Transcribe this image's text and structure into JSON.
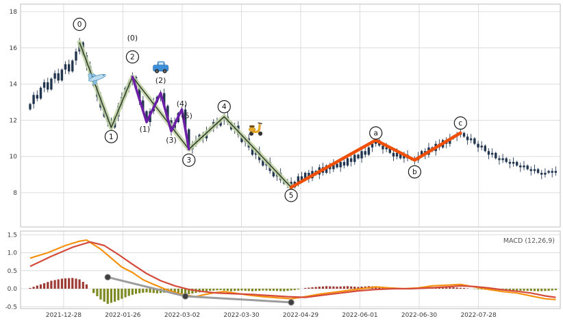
{
  "chart_data": {
    "type": "candlestick",
    "title": "",
    "x_axis": {
      "tick_labels": [
        "2021-12-28",
        "2022-01-26",
        "2022-03-02",
        "2022-03-30",
        "2022-04-29",
        "2022-06-01",
        "2022-06-30",
        "2022-07-28"
      ],
      "tick_day_indices": [
        9.5,
        26.3,
        43.1,
        59.9,
        76.7,
        93.5,
        110.3,
        127.1
      ]
    },
    "price_panel": {
      "yticks": [
        {
          "v": 18,
          "label": "18"
        },
        {
          "v": 16,
          "label": "16"
        },
        {
          "v": 14,
          "label": "14"
        },
        {
          "v": 12,
          "label": "12"
        },
        {
          "v": 10,
          "label": "10"
        },
        {
          "v": 8,
          "label": "8"
        }
      ],
      "ylim": [
        6.1,
        18.4
      ],
      "close": [
        12.9,
        13.4,
        13.2,
        13.8,
        14.1,
        13.7,
        14.3,
        14.6,
        14.2,
        14.8,
        15.1,
        14.7,
        15.3,
        15.8,
        16.3,
        15.6,
        15.0,
        14.4,
        13.9,
        13.3,
        12.7,
        12.2,
        11.9,
        11.6,
        12.2,
        12.8,
        13.3,
        13.8,
        14.1,
        14.4,
        13.8,
        13.1,
        12.5,
        11.9,
        12.5,
        13.0,
        13.3,
        13.5,
        12.8,
        12.0,
        11.4,
        11.9,
        12.4,
        12.6,
        11.5,
        10.4,
        10.7,
        10.9,
        11.2,
        11.0,
        11.4,
        11.6,
        11.9,
        11.7,
        12.0,
        12.2,
        11.9,
        11.5,
        11.7,
        11.2,
        10.8,
        11.0,
        10.5,
        10.1,
        10.3,
        9.8,
        9.5,
        9.7,
        9.2,
        8.9,
        9.1,
        8.7,
        8.5,
        8.6,
        8.3,
        8.6,
        8.9,
        8.7,
        9.1,
        8.8,
        9.2,
        9.0,
        9.4,
        9.1,
        9.5,
        9.3,
        9.6,
        9.4,
        9.7,
        9.5,
        9.9,
        9.7,
        10.1,
        9.9,
        10.3,
        10.1,
        10.5,
        10.7,
        10.9,
        10.6,
        10.4,
        10.5,
        10.2,
        10.0,
        10.2,
        9.9,
        10.1,
        9.9,
        9.85,
        9.8,
        10.0,
        10.3,
        10.1,
        10.5,
        10.3,
        10.7,
        10.5,
        10.9,
        10.7,
        11.0,
        11.1,
        11.2,
        11.3,
        11.1,
        10.9,
        11.0,
        10.7,
        10.5,
        10.6,
        10.3,
        10.1,
        10.2,
        9.9,
        9.8,
        9.9,
        9.7,
        9.6,
        9.7,
        9.5,
        9.4,
        9.5,
        9.3,
        9.2,
        9.3,
        9.1,
        9.0,
        9.1,
        9.2,
        9.1,
        9.2
      ],
      "elliott_waves": {
        "primary": {
          "points": [
            [
              14,
              16.3
            ],
            [
              23,
              11.6
            ],
            [
              29,
              14.4
            ],
            [
              45,
              10.4
            ],
            [
              55,
              12.2
            ],
            [
              74,
              8.3
            ]
          ],
          "labels": [
            {
              "text": "0",
              "i": 14,
              "price": 17.3
            },
            {
              "text": "1",
              "i": 23,
              "price": 11.1
            },
            {
              "text": "2",
              "i": 29,
              "price": 15.5
            },
            {
              "text": "3",
              "i": 45,
              "price": 9.8
            },
            {
              "text": "4",
              "i": 55,
              "price": 12.75
            },
            {
              "text": "5",
              "i": 74,
              "price": 7.85
            }
          ]
        },
        "sub": {
          "points": [
            [
              29,
              14.4
            ],
            [
              33,
              11.9
            ],
            [
              37,
              13.5
            ],
            [
              40,
              11.4
            ],
            [
              43,
              12.6
            ],
            [
              45,
              10.4
            ]
          ],
          "labels": [
            {
              "text": "(0)",
              "i": 29,
              "price": 16.55
            },
            {
              "text": "(1)",
              "i": 32.5,
              "price": 11.5
            },
            {
              "text": "(2)",
              "i": 37,
              "price": 14.2
            },
            {
              "text": "(3)",
              "i": 40,
              "price": 10.9
            },
            {
              "text": "(4)",
              "i": 43,
              "price": 12.9
            },
            {
              "text": "(5)",
              "i": 44.5,
              "price": 12.25
            }
          ]
        },
        "corrective": {
          "points": [
            [
              74,
              8.3
            ],
            [
              98,
              10.9
            ],
            [
              109,
              9.8
            ],
            [
              122,
              11.3
            ]
          ],
          "labels": [
            {
              "text": "a",
              "i": 98,
              "price": 11.3
            },
            {
              "text": "b",
              "i": 109,
              "price": 9.15
            },
            {
              "text": "c",
              "i": 122,
              "price": 11.85
            }
          ]
        }
      },
      "icons": [
        {
          "name": "airplane-icon",
          "i": 19,
          "price": 14.35
        },
        {
          "name": "car-icon",
          "i": 37,
          "price": 14.9
        },
        {
          "name": "scooter-icon",
          "i": 64,
          "price": 11.55
        }
      ]
    },
    "macd_panel": {
      "label": "MACD (12,26,9)",
      "yticks": [
        {
          "v": 1.5,
          "label": "1.5"
        },
        {
          "v": 1.0,
          "label": "1.0"
        },
        {
          "v": 0.5,
          "label": "0.5"
        },
        {
          "v": 0.0,
          "label": "0.0"
        },
        {
          "v": -0.5,
          "label": "-0.5"
        }
      ],
      "ylim": [
        -0.62,
        1.6
      ],
      "macd_anchors": [
        [
          0,
          0.85
        ],
        [
          5,
          1.0
        ],
        [
          10,
          1.2
        ],
        [
          14,
          1.32
        ],
        [
          16,
          1.35
        ],
        [
          20,
          1.1
        ],
        [
          23,
          0.85
        ],
        [
          26,
          0.6
        ],
        [
          29,
          0.45
        ],
        [
          32,
          0.25
        ],
        [
          35,
          0.12
        ],
        [
          38,
          0.0
        ],
        [
          41,
          -0.1
        ],
        [
          44,
          -0.18
        ],
        [
          47,
          -0.22
        ],
        [
          50,
          -0.15
        ],
        [
          53,
          -0.1
        ],
        [
          55,
          -0.08
        ],
        [
          58,
          -0.12
        ],
        [
          62,
          -0.18
        ],
        [
          66,
          -0.22
        ],
        [
          70,
          -0.25
        ],
        [
          74,
          -0.28
        ],
        [
          78,
          -0.22
        ],
        [
          82,
          -0.15
        ],
        [
          86,
          -0.1
        ],
        [
          90,
          -0.05
        ],
        [
          94,
          0.0
        ],
        [
          98,
          0.05
        ],
        [
          102,
          0.02
        ],
        [
          106,
          0.0
        ],
        [
          110,
          0.02
        ],
        [
          114,
          0.08
        ],
        [
          118,
          0.1
        ],
        [
          122,
          0.12
        ],
        [
          126,
          0.05
        ],
        [
          130,
          -0.02
        ],
        [
          134,
          -0.08
        ],
        [
          138,
          -0.12
        ],
        [
          142,
          -0.2
        ],
        [
          146,
          -0.28
        ],
        [
          149,
          -0.3
        ]
      ],
      "signal_anchors": [
        [
          0,
          0.62
        ],
        [
          6,
          0.9
        ],
        [
          12,
          1.15
        ],
        [
          17,
          1.3
        ],
        [
          21,
          1.2
        ],
        [
          25,
          0.95
        ],
        [
          29,
          0.68
        ],
        [
          33,
          0.42
        ],
        [
          37,
          0.22
        ],
        [
          41,
          0.08
        ],
        [
          45,
          -0.02
        ],
        [
          49,
          -0.08
        ],
        [
          53,
          -0.12
        ],
        [
          58,
          -0.14
        ],
        [
          63,
          -0.16
        ],
        [
          68,
          -0.19
        ],
        [
          73,
          -0.22
        ],
        [
          78,
          -0.24
        ],
        [
          83,
          -0.18
        ],
        [
          88,
          -0.12
        ],
        [
          93,
          -0.06
        ],
        [
          98,
          -0.02
        ],
        [
          103,
          0.0
        ],
        [
          108,
          0.0
        ],
        [
          113,
          0.02
        ],
        [
          118,
          0.05
        ],
        [
          122,
          0.08
        ],
        [
          126,
          0.06
        ],
        [
          130,
          0.02
        ],
        [
          134,
          -0.03
        ],
        [
          138,
          -0.07
        ],
        [
          142,
          -0.12
        ],
        [
          146,
          -0.2
        ],
        [
          149,
          -0.24
        ]
      ],
      "hist_anchors": [
        [
          0,
          0.02
        ],
        [
          3,
          0.12
        ],
        [
          6,
          0.22
        ],
        [
          9,
          0.28
        ],
        [
          12,
          0.3
        ],
        [
          14,
          0.26
        ],
        [
          16,
          0.12
        ],
        [
          17,
          0.0
        ],
        [
          18,
          -0.12
        ],
        [
          20,
          -0.3
        ],
        [
          22,
          -0.42
        ],
        [
          24,
          -0.36
        ],
        [
          26,
          -0.28
        ],
        [
          28,
          -0.2
        ],
        [
          30,
          -0.14
        ],
        [
          33,
          -0.1
        ],
        [
          36,
          -0.13
        ],
        [
          39,
          -0.1
        ],
        [
          42,
          -0.13
        ],
        [
          45,
          -0.15
        ],
        [
          48,
          -0.1
        ],
        [
          51,
          -0.06
        ],
        [
          54,
          -0.04
        ],
        [
          57,
          -0.07
        ],
        [
          60,
          -0.05
        ],
        [
          63,
          -0.07
        ],
        [
          66,
          -0.05
        ],
        [
          69,
          -0.06
        ],
        [
          72,
          -0.07
        ],
        [
          75,
          -0.04
        ],
        [
          78,
          0.02
        ],
        [
          81,
          0.05
        ],
        [
          84,
          0.07
        ],
        [
          87,
          0.06
        ],
        [
          90,
          0.07
        ],
        [
          93,
          0.05
        ],
        [
          96,
          0.07
        ],
        [
          99,
          0.06
        ],
        [
          102,
          0.03
        ],
        [
          105,
          0.01
        ],
        [
          108,
          0.02
        ],
        [
          111,
          0.04
        ],
        [
          114,
          0.05
        ],
        [
          117,
          0.04
        ],
        [
          120,
          0.04
        ],
        [
          123,
          0.02
        ],
        [
          126,
          -0.01
        ],
        [
          129,
          -0.03
        ],
        [
          132,
          -0.05
        ],
        [
          135,
          -0.04
        ],
        [
          138,
          -0.05
        ],
        [
          141,
          -0.06
        ],
        [
          144,
          -0.07
        ],
        [
          147,
          -0.06
        ],
        [
          149,
          -0.04
        ]
      ],
      "divergence_points": [
        [
          22,
          0.32
        ],
        [
          44,
          -0.21
        ],
        [
          74,
          -0.38
        ]
      ]
    },
    "colors": {
      "candle": "#223650",
      "wave_band": "#c2d3a6",
      "wave_line": "#2c3a28",
      "sub_wave": "#6d1fa7",
      "corrective": "#f04f08",
      "macd": "#f5910f",
      "signal": "#d44a3a",
      "hist_pos": "#9e3a34",
      "hist_neg": "#7d8a21",
      "divergence": "#9c9c9c",
      "grid": "#dcdcdc",
      "axis_text": "#3a3a3a",
      "border": "#bdbdbd"
    }
  }
}
